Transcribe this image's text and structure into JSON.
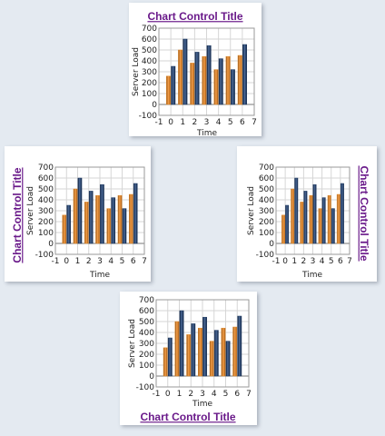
{
  "chart_data": [
    {
      "type": "bar",
      "title": "Chart Control Title",
      "title_position": "top",
      "xlabel": "Time",
      "ylabel": "Server Load",
      "xlim": [
        -1,
        7
      ],
      "ylim": [
        -100,
        700
      ],
      "series": [
        {
          "values": [
            [
              -0.2,
              260
            ],
            [
              0.8,
              500
            ],
            [
              1.8,
              380
            ],
            [
              2.8,
              440
            ],
            [
              3.8,
              320
            ],
            [
              4.8,
              440
            ],
            [
              5.8,
              450
            ]
          ]
        },
        {
          "values": [
            [
              0.2,
              350
            ],
            [
              1.2,
              600
            ],
            [
              2.2,
              480
            ],
            [
              3.2,
              540
            ],
            [
              4.2,
              420
            ],
            [
              5.2,
              320
            ],
            [
              6.2,
              550
            ]
          ]
        }
      ]
    },
    {
      "type": "bar",
      "title": "Chart Control Title",
      "title_position": "left",
      "xlabel": "Time",
      "ylabel": "Server Load",
      "xlim": [
        -1,
        7
      ],
      "ylim": [
        -100,
        700
      ],
      "series": [
        {
          "values": [
            [
              -0.2,
              260
            ],
            [
              0.8,
              500
            ],
            [
              1.8,
              380
            ],
            [
              2.8,
              440
            ],
            [
              3.8,
              320
            ],
            [
              4.8,
              440
            ],
            [
              5.8,
              450
            ]
          ]
        },
        {
          "values": [
            [
              0.2,
              350
            ],
            [
              1.2,
              600
            ],
            [
              2.2,
              480
            ],
            [
              3.2,
              540
            ],
            [
              4.2,
              420
            ],
            [
              5.2,
              320
            ],
            [
              6.2,
              550
            ]
          ]
        }
      ]
    },
    {
      "type": "bar",
      "title": "Chart Control Title",
      "title_position": "right",
      "xlabel": "Time",
      "ylabel": "Server Load",
      "xlim": [
        -1,
        7
      ],
      "ylim": [
        -100,
        700
      ],
      "series": [
        {
          "values": [
            [
              -0.2,
              260
            ],
            [
              0.8,
              500
            ],
            [
              1.8,
              380
            ],
            [
              2.8,
              440
            ],
            [
              3.8,
              320
            ],
            [
              4.8,
              440
            ],
            [
              5.8,
              450
            ]
          ]
        },
        {
          "values": [
            [
              0.2,
              350
            ],
            [
              1.2,
              600
            ],
            [
              2.2,
              480
            ],
            [
              3.2,
              540
            ],
            [
              4.2,
              420
            ],
            [
              5.2,
              320
            ],
            [
              6.2,
              550
            ]
          ]
        }
      ]
    },
    {
      "type": "bar",
      "title": "Chart Control Title",
      "title_position": "bottom",
      "xlabel": "Time",
      "ylabel": "Server Load",
      "xlim": [
        -1,
        7
      ],
      "ylim": [
        -100,
        700
      ],
      "series": [
        {
          "values": [
            [
              -0.2,
              260
            ],
            [
              0.8,
              500
            ],
            [
              1.8,
              380
            ],
            [
              2.8,
              440
            ],
            [
              3.8,
              320
            ],
            [
              4.8,
              440
            ],
            [
              5.8,
              450
            ]
          ]
        },
        {
          "values": [
            [
              0.2,
              350
            ],
            [
              1.2,
              600
            ],
            [
              2.2,
              480
            ],
            [
              3.2,
              540
            ],
            [
              4.2,
              420
            ],
            [
              5.2,
              320
            ],
            [
              6.2,
              550
            ]
          ]
        }
      ]
    }
  ],
  "colors": {
    "series_1": "#e08a2a",
    "series_2": "#1f3a63",
    "title": "#6a1a8a"
  }
}
